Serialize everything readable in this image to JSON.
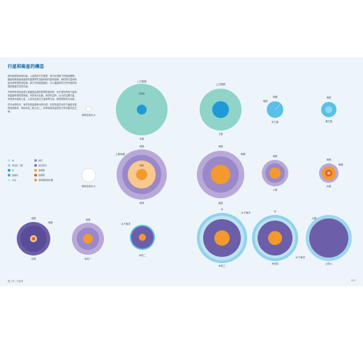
{
  "page": {
    "title": "行星和衛星的構造",
    "paragraphs": [
      "我們能調查地球內部，以這樣的方式推測，我可比得彼下的數據實際，都使用其數據而讓我們推測研究這個地球內部的結構。我們的行星和衛星內部有很多的結構，和它們的組成變化，可以通過研究它們外部的特徵來推論它們的內部。",
      "不是所有的衛星和行星都是由相同的物質構成的，也不是所有的行星和衛星都有相同的構造，有些有大氣層，有些則沒有。巨大的氣體行星，也就是木星和土星，以及冰巨星天王星和海王星，都有很厚的大氣層。",
      "在外太陽系中，有許多衛星都有冰的外殼，有些衛星的冰殼下面還可能有液態海洋，例如木衛二和土衛二，科學家認為這些地方有可能存在生命。"
    ],
    "footer_left": "第三章 | 行星學",
    "footer_right": "053"
  },
  "legend": {
    "items": [
      {
        "label": "冰",
        "color": "#bfe3f2"
      },
      {
        "label": "岩石",
        "color": "#9a8fc9"
      },
      {
        "label": "氫和氦（液）",
        "color": "#a6d4e6"
      },
      {
        "label": "岩石和冰",
        "color": "#7f7bbb"
      },
      {
        "label": "水",
        "color": "#2a9fd6"
      },
      {
        "label": "液態鐵",
        "color": "#f7a33a"
      },
      {
        "label": "金屬氫",
        "color": "#5d9dc8"
      },
      {
        "label": "固態鐵",
        "color": "#e85d2e"
      },
      {
        "label": "大氣",
        "color": "#c9e7f3"
      },
      {
        "label": "液態鐵和硫化鐵",
        "color": "#f29a5a"
      }
    ]
  },
  "planets": [
    {
      "name": "木星",
      "annotations": [
        "上方氣層",
        "氫和氦"
      ]
    },
    {
      "name": "土星",
      "annotations": [
        "上方氣層"
      ]
    },
    {
      "name": "天王星",
      "annotations": [
        "地幔",
        "地核"
      ]
    },
    {
      "name": "海王星",
      "annotations": [
        "地核"
      ]
    },
    {
      "name": "地球",
      "annotations": [
        "地殼",
        "上部地幔",
        "地核"
      ]
    },
    {
      "name": "金星",
      "annotations": [
        "地殼",
        "地幔"
      ]
    },
    {
      "name": "火星",
      "annotations": [
        "地核"
      ]
    },
    {
      "name": "水星",
      "annotations": [
        "地殼",
        "地幔"
      ]
    },
    {
      "name": "月球",
      "annotations": [
        "地殼",
        "地幔"
      ]
    },
    {
      "name": "木衛一",
      "annotations": [
        "地殼"
      ]
    },
    {
      "name": "木衛二",
      "annotations": [
        "冰下海洋"
      ]
    },
    {
      "name": "木衛三",
      "annotations": [
        "冰",
        "冰下海洋"
      ]
    },
    {
      "name": "木衛四",
      "annotations": [
        "冰",
        "冰下海洋"
      ]
    },
    {
      "name": "土衛六",
      "annotations": [
        "大氣"
      ]
    }
  ],
  "scale_labels": [
    "地球比例大小",
    "地球比例大小"
  ]
}
